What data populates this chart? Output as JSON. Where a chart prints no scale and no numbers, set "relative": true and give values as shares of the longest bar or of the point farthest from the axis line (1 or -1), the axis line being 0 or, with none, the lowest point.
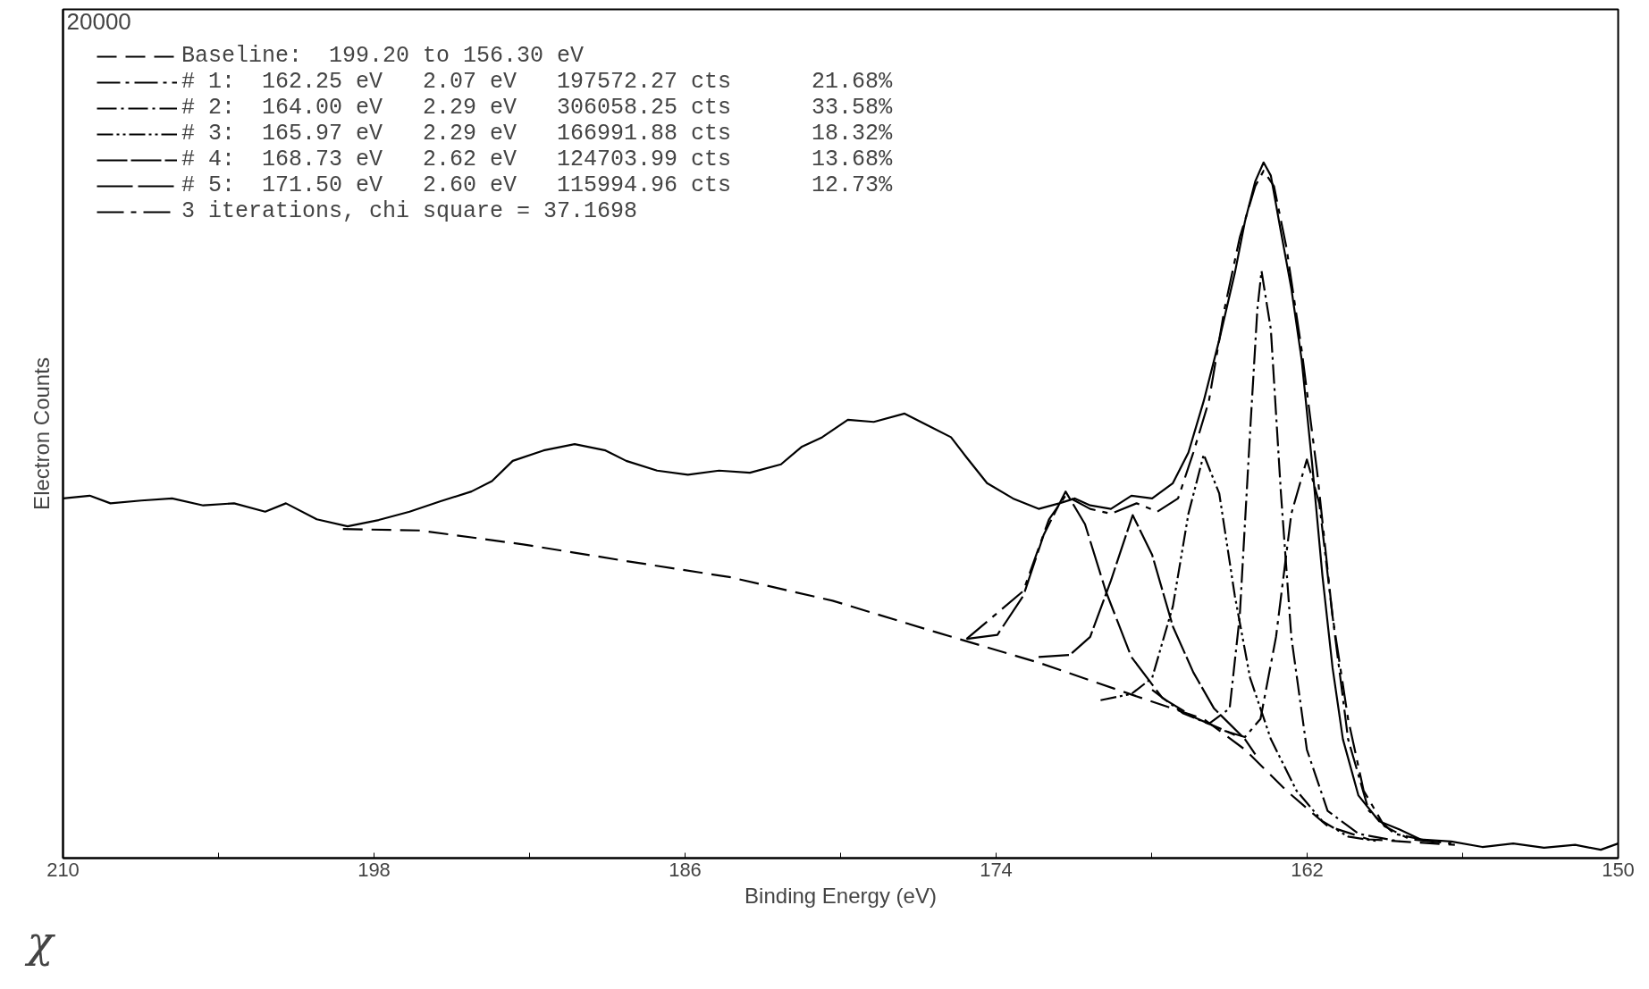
{
  "chart_data": {
    "type": "line",
    "xlabel": "Binding Energy (eV)",
    "ylabel": "Electron Counts",
    "relative": true,
    "xlim": [
      210,
      150
    ],
    "xticks": [
      210,
      {
        "value": 204,
        "label": null
      },
      198,
      {
        "value": 192,
        "label": null
      },
      186,
      {
        "value": 180,
        "label": null
      },
      174,
      {
        "value": 168,
        "label": null
      },
      162,
      {
        "value": 156,
        "label": null
      },
      150
    ],
    "grid": false,
    "legend": "top left",
    "annotations": [
      "20000",
      "χ"
    ],
    "series": [
      {
        "color": "#000000",
        "line_style": "solid",
        "x": [
          210.0,
          208.97,
          208.17,
          206.98,
          205.79,
          204.59,
          203.4,
          202.2,
          201.4,
          200.21,
          199.02,
          197.82,
          196.63,
          195.43,
          194.24,
          193.45,
          192.65,
          191.46,
          190.26,
          189.07,
          188.27,
          187.08,
          185.89,
          184.69,
          183.5,
          182.3,
          181.51,
          180.71,
          179.72,
          178.72,
          177.53,
          176.53,
          175.74,
          175.14,
          174.35,
          173.35,
          172.36,
          171.56,
          170.96,
          170.37,
          169.57,
          168.78,
          167.98,
          167.18,
          166.58,
          165.99,
          165.39,
          164.79,
          164.4,
          164.0,
          163.68,
          163.4,
          163.01,
          162.61,
          162.21,
          161.81,
          161.41,
          161.02,
          160.62,
          160.02,
          159.22,
          158.43,
          157.63,
          156.44,
          155.24,
          154.05,
          152.86,
          151.66,
          150.67,
          150.0
        ],
        "values": [
          0.517,
          0.521,
          0.51,
          0.514,
          0.517,
          0.507,
          0.51,
          0.498,
          0.51,
          0.487,
          0.477,
          0.486,
          0.498,
          0.513,
          0.527,
          0.542,
          0.571,
          0.586,
          0.595,
          0.586,
          0.571,
          0.557,
          0.551,
          0.557,
          0.554,
          0.566,
          0.591,
          0.605,
          0.63,
          0.627,
          0.639,
          0.62,
          0.605,
          0.576,
          0.539,
          0.517,
          0.502,
          0.51,
          0.517,
          0.507,
          0.502,
          0.521,
          0.517,
          0.539,
          0.583,
          0.657,
          0.745,
          0.841,
          0.915,
          0.973,
          1,
          0.981,
          0.9,
          0.819,
          0.716,
          0.568,
          0.406,
          0.274,
          0.171,
          0.09,
          0.053,
          0.041,
          0.027,
          0.024,
          0.016,
          0.021,
          0.015,
          0.019,
          0.012,
          0.021
        ]
      },
      {
        "name": "Baseline:  199.20 to 156.30 eV",
        "color": "#000000",
        "line_style": "dashed",
        "x": [
          199.2,
          196.23,
          192.25,
          188.27,
          184.29,
          180.31,
          176.34,
          172.36,
          168.38,
          165.99,
          164.4,
          162.8,
          161.21,
          159.62,
          156.3
        ],
        "values": [
          0.473,
          0.471,
          0.451,
          0.427,
          0.404,
          0.37,
          0.325,
          0.281,
          0.23,
          0.2,
          0.156,
          0.097,
          0.046,
          0.027,
          0.019
        ]
      },
      {
        "name": "# 1:  162.25 eV   2.07 eV   197572.27 cts      21.68%",
        "color": "#000000",
        "line_style": "dashed",
        "x": [
          165.19,
          164.4,
          163.8,
          163.2,
          162.61,
          162.01,
          161.53,
          161.02,
          160.42,
          159.62,
          158.63,
          157.23
        ],
        "values": [
          0.183,
          0.174,
          0.2,
          0.318,
          0.495,
          0.573,
          0.51,
          0.348,
          0.171,
          0.068,
          0.035,
          0.024
        ]
      },
      {
        "name": "# 2:  164.00 eV   2.29 eV   306058.25 cts      33.58%",
        "color": "#000000",
        "line_style": "dashed",
        "x": [
          167.98,
          166.78,
          165.79,
          164.99,
          164.6,
          164.2,
          163.92,
          163.76,
          163.4,
          163.01,
          162.61,
          162.01,
          161.21,
          160.02,
          158.43
        ],
        "values": [
          0.242,
          0.208,
          0.193,
          0.215,
          0.348,
          0.613,
          0.789,
          0.844,
          0.76,
          0.524,
          0.318,
          0.156,
          0.068,
          0.035,
          0.024
        ]
      },
      {
        "name": "# 3:  165.97 eV   2.29 eV   166991.88 cts      18.32%",
        "color": "#000000",
        "line_style": "dashed",
        "x": [
          169.97,
          168.78,
          167.98,
          167.18,
          166.58,
          165.99,
          165.39,
          164.79,
          164.2,
          163.4,
          162.41,
          161.41,
          160.42,
          159.22
        ],
        "values": [
          0.227,
          0.236,
          0.259,
          0.362,
          0.495,
          0.58,
          0.524,
          0.377,
          0.259,
          0.171,
          0.097,
          0.053,
          0.031,
          0.024
        ]
      },
      {
        "name": "# 4:  168.73 eV   2.62 eV   124703.99 cts      13.68%",
        "color": "#000000",
        "line_style": "dashed",
        "x": [
          172.36,
          171.16,
          170.37,
          169.57,
          168.73,
          167.98,
          167.18,
          166.39,
          165.59,
          164.4,
          164.0
        ],
        "values": [
          0.289,
          0.292,
          0.318,
          0.399,
          0.493,
          0.436,
          0.333,
          0.267,
          0.215,
          0.171,
          0.149
        ]
      },
      {
        "name": "# 5:  171.50 eV   2.60 eV   115994.96 cts      12.73%",
        "color": "#000000",
        "line_style": "dashed",
        "x": [
          175.14,
          173.95,
          172.95,
          172.16,
          171.32,
          170.57,
          169.77,
          168.78,
          167.58,
          166.39,
          164.79
        ],
        "values": [
          0.315,
          0.321,
          0.377,
          0.465,
          0.527,
          0.48,
          0.384,
          0.289,
          0.23,
          0.203,
          0.177
        ]
      },
      {
        "name": "3 iterations, chi square = 37.1698",
        "color": "#000000",
        "line_style": "dashed",
        "x": [
          175.14,
          172.95,
          171.96,
          171.32,
          170.37,
          169.57,
          168.58,
          167.78,
          166.98,
          166.39,
          165.79,
          165.19,
          164.6,
          164.0,
          163.68,
          163.28,
          162.8,
          162.21,
          161.61,
          161.02,
          160.42,
          159.82,
          159.02,
          158.03,
          156.44
        ],
        "values": [
          0.315,
          0.384,
          0.487,
          0.521,
          0.502,
          0.495,
          0.51,
          0.498,
          0.517,
          0.583,
          0.657,
          0.789,
          0.892,
          0.966,
          0.988,
          0.966,
          0.878,
          0.73,
          0.554,
          0.348,
          0.2,
          0.097,
          0.046,
          0.027,
          0.021
        ]
      }
    ]
  }
}
